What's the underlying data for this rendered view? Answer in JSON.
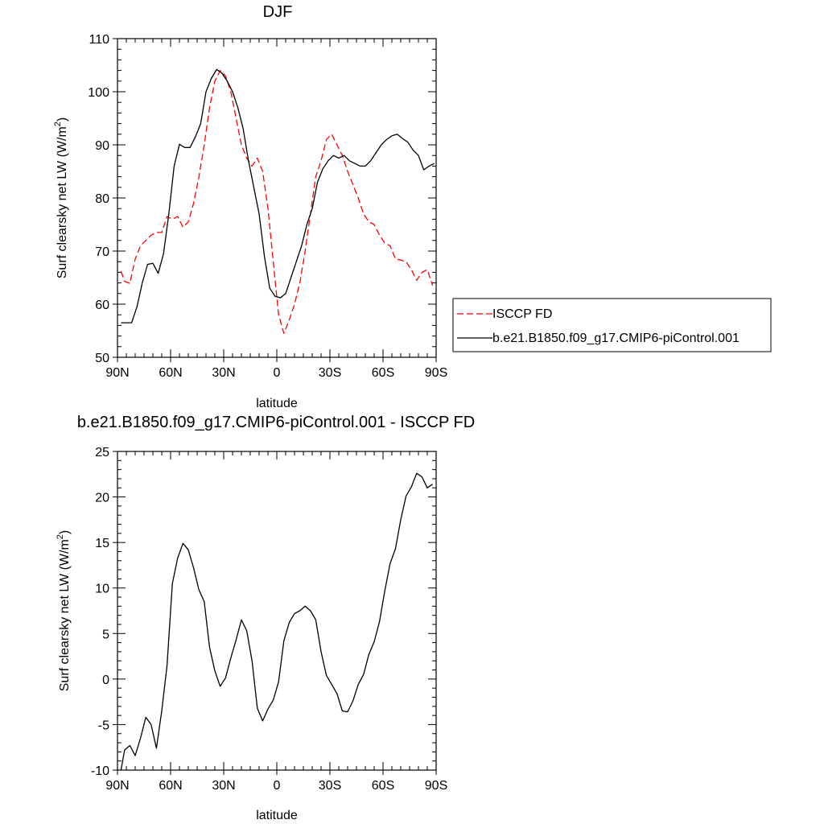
{
  "chart_data": [
    {
      "type": "line",
      "title": "DJF",
      "xlabel": "latitude",
      "ylabel": "Surf clearsky net LW (W/m²)",
      "ylabel_main": "Surf clearsky net LW (W/m",
      "ylabel_sup": "2",
      "ylabel_close": ")",
      "xlim": [
        90,
        -90
      ],
      "ylim": [
        50,
        110
      ],
      "x_ticks": [
        {
          "value": 90,
          "label": "90N"
        },
        {
          "value": 60,
          "label": "60N"
        },
        {
          "value": 30,
          "label": "30N"
        },
        {
          "value": 0,
          "label": "0"
        },
        {
          "value": -30,
          "label": "30S"
        },
        {
          "value": -60,
          "label": "60S"
        },
        {
          "value": -90,
          "label": "90S"
        }
      ],
      "y_ticks": [
        50,
        60,
        70,
        80,
        90,
        100,
        110
      ],
      "grid": false,
      "legend_placement": "right",
      "series": [
        {
          "name": "ISCCP FD",
          "color": "#ff0000",
          "dash": "dashed",
          "x": [
            88,
            86,
            83,
            80,
            77,
            74,
            71,
            68,
            65,
            62,
            59,
            56,
            53,
            50,
            47,
            44,
            41,
            38,
            35,
            32,
            29,
            26,
            23,
            20,
            17,
            14,
            11,
            8,
            5,
            2,
            -1,
            -4,
            -7,
            -10,
            -13,
            -16,
            -19,
            -22,
            -25,
            -28,
            -31,
            -34,
            -37,
            -40,
            -43,
            -46,
            -49,
            -52,
            -55,
            -58,
            -61,
            -64,
            -67,
            -70,
            -73,
            -76,
            -79,
            -82,
            -85,
            -88
          ],
          "y": [
            66.2,
            64.3,
            63.9,
            68.5,
            71,
            72,
            73,
            73.5,
            73.5,
            76.5,
            76,
            76.5,
            74.5,
            75.5,
            79,
            84,
            90,
            97,
            102,
            104,
            103,
            100,
            95,
            90,
            87.5,
            86,
            87.5,
            85,
            78,
            68,
            58,
            54.5,
            57,
            60,
            64,
            70,
            77,
            84,
            87,
            91,
            92,
            90,
            88,
            85,
            82.5,
            80,
            77,
            75.5,
            75,
            73,
            71.5,
            71,
            68.5,
            68.3,
            68,
            66.5,
            64.5,
            66,
            66.5,
            63.5
          ]
        },
        {
          "name": "b.e21.B1850.f09_g17.CMIP6-piControl.001",
          "color": "#000000",
          "dash": "solid",
          "x": [
            88,
            85,
            82,
            79,
            76,
            73,
            70,
            67,
            64,
            61,
            58,
            55,
            52,
            49,
            46,
            43,
            40,
            37,
            34,
            31,
            28,
            25,
            22,
            19,
            16,
            13,
            10,
            7,
            4,
            1,
            -2,
            -5,
            -8,
            -11,
            -14,
            -17,
            -20,
            -23,
            -26,
            -29,
            -32,
            -35,
            -38,
            -41,
            -44,
            -47,
            -50,
            -53,
            -56,
            -59,
            -62,
            -65,
            -68,
            -71,
            -74,
            -77,
            -80,
            -83,
            -86,
            -89
          ],
          "y": [
            56.5,
            56.5,
            56.5,
            59.5,
            64,
            67.5,
            67.7,
            65.8,
            69.5,
            77,
            86,
            90.1,
            89.5,
            89.5,
            91.5,
            94,
            100,
            102.5,
            104.2,
            103.5,
            102,
            100,
            97,
            93,
            87,
            82,
            77,
            69,
            63,
            61.5,
            61.2,
            62,
            65,
            68,
            71,
            75,
            78,
            83,
            85.5,
            87,
            88,
            87.5,
            88,
            87,
            86.5,
            86,
            86,
            87,
            88.5,
            90,
            91,
            91.7,
            92,
            91.2,
            90.5,
            89,
            88,
            85.3,
            86,
            86.5
          ]
        }
      ]
    },
    {
      "type": "line",
      "title": "b.e21.B1850.f09_g17.CMIP6-piControl.001 - ISCCP FD",
      "xlabel": "latitude",
      "ylabel": "Surf clearsky net LW (W/m²)",
      "ylabel_main": "Surf clearsky net LW (W/m",
      "ylabel_sup": "2",
      "ylabel_close": ")",
      "xlim": [
        90,
        -90
      ],
      "ylim": [
        -10,
        25
      ],
      "x_ticks": [
        {
          "value": 90,
          "label": "90N"
        },
        {
          "value": 60,
          "label": "60N"
        },
        {
          "value": 30,
          "label": "30N"
        },
        {
          "value": 0,
          "label": "0"
        },
        {
          "value": -30,
          "label": "30S"
        },
        {
          "value": -60,
          "label": "60S"
        },
        {
          "value": -90,
          "label": "90S"
        }
      ],
      "y_ticks": [
        -10,
        -5,
        0,
        5,
        10,
        15,
        20,
        25
      ],
      "grid": false,
      "series": [
        {
          "color": "#000000",
          "dash": "solid",
          "x": [
            88,
            86,
            83,
            80,
            77,
            74,
            71,
            68,
            65,
            62,
            59,
            56,
            53,
            50,
            47,
            44,
            41,
            38,
            35,
            32,
            29,
            26,
            23,
            20,
            17,
            14,
            11,
            8,
            5,
            2,
            -1,
            -4,
            -7,
            -10,
            -13,
            -16,
            -19,
            -22,
            -25,
            -28,
            -31,
            -34,
            -37,
            -40,
            -43,
            -46,
            -49,
            -52,
            -55,
            -58,
            -61,
            -64,
            -67,
            -70,
            -73,
            -76,
            -79,
            -82,
            -85,
            -88
          ],
          "y": [
            -10,
            -7.8,
            -7.3,
            -8.4,
            -6.5,
            -4.2,
            -5,
            -7.6,
            -3.5,
            1.5,
            10.5,
            13.3,
            14.9,
            14.2,
            12.2,
            9.8,
            8.5,
            3.5,
            0.9,
            -0.8,
            0.1,
            2.3,
            4.3,
            6.5,
            5.3,
            2,
            -3.2,
            -4.6,
            -3.3,
            -2.3,
            -0.3,
            4.2,
            6.2,
            7.2,
            7.5,
            8,
            7.5,
            6.5,
            3,
            0.4,
            -0.6,
            -1.6,
            -3.5,
            -3.6,
            -2.4,
            -0.6,
            0.5,
            2.7,
            4.1,
            6.3,
            9.7,
            12.7,
            14.3,
            17.5,
            20.1,
            21.1,
            22.6,
            22.2,
            21,
            21.4
          ]
        }
      ]
    }
  ]
}
